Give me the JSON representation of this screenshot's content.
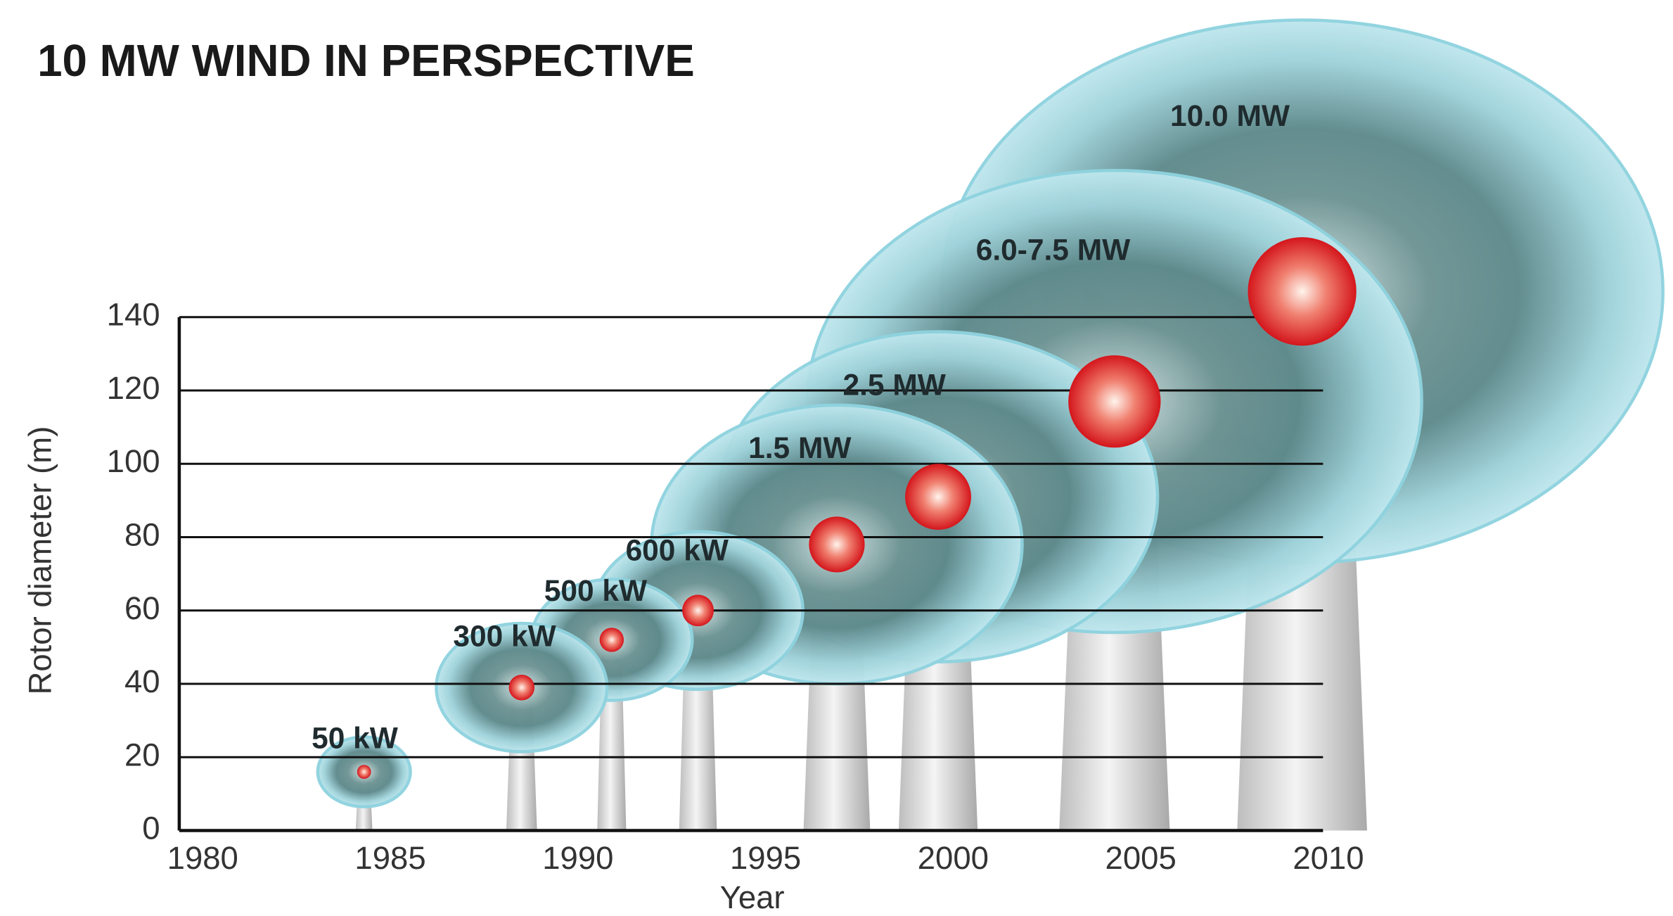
{
  "chart_data": {
    "type": "bubble",
    "title": "10 MW WIND IN PERSPECTIVE",
    "x_label": "Year",
    "y_label": "Rotor diameter (m)",
    "xlim": [
      1980,
      2010
    ],
    "xticks": [
      1980,
      1985,
      1990,
      1995,
      2000,
      2005,
      2010
    ],
    "ylim": [
      0,
      140
    ],
    "yticks": [
      0,
      20,
      40,
      60,
      80,
      100,
      120,
      140
    ],
    "grid": true,
    "labels": [
      "50 kW",
      "300 kW",
      "500 kW",
      "600 kW",
      "1.5 MW",
      "2.5 MW",
      "6.0-7.5 MW",
      "10.0 MW"
    ],
    "x": [
      1984.3,
      1988.5,
      1990.9,
      1993.2,
      1996.9,
      1999.6,
      2004.3,
      2009.3
    ],
    "values": [
      16,
      39,
      52,
      60,
      78,
      91,
      117,
      147
    ],
    "sizes": [
      19,
      35,
      33,
      43,
      76,
      90,
      126,
      148
    ],
    "color": "#8fd3df"
  }
}
